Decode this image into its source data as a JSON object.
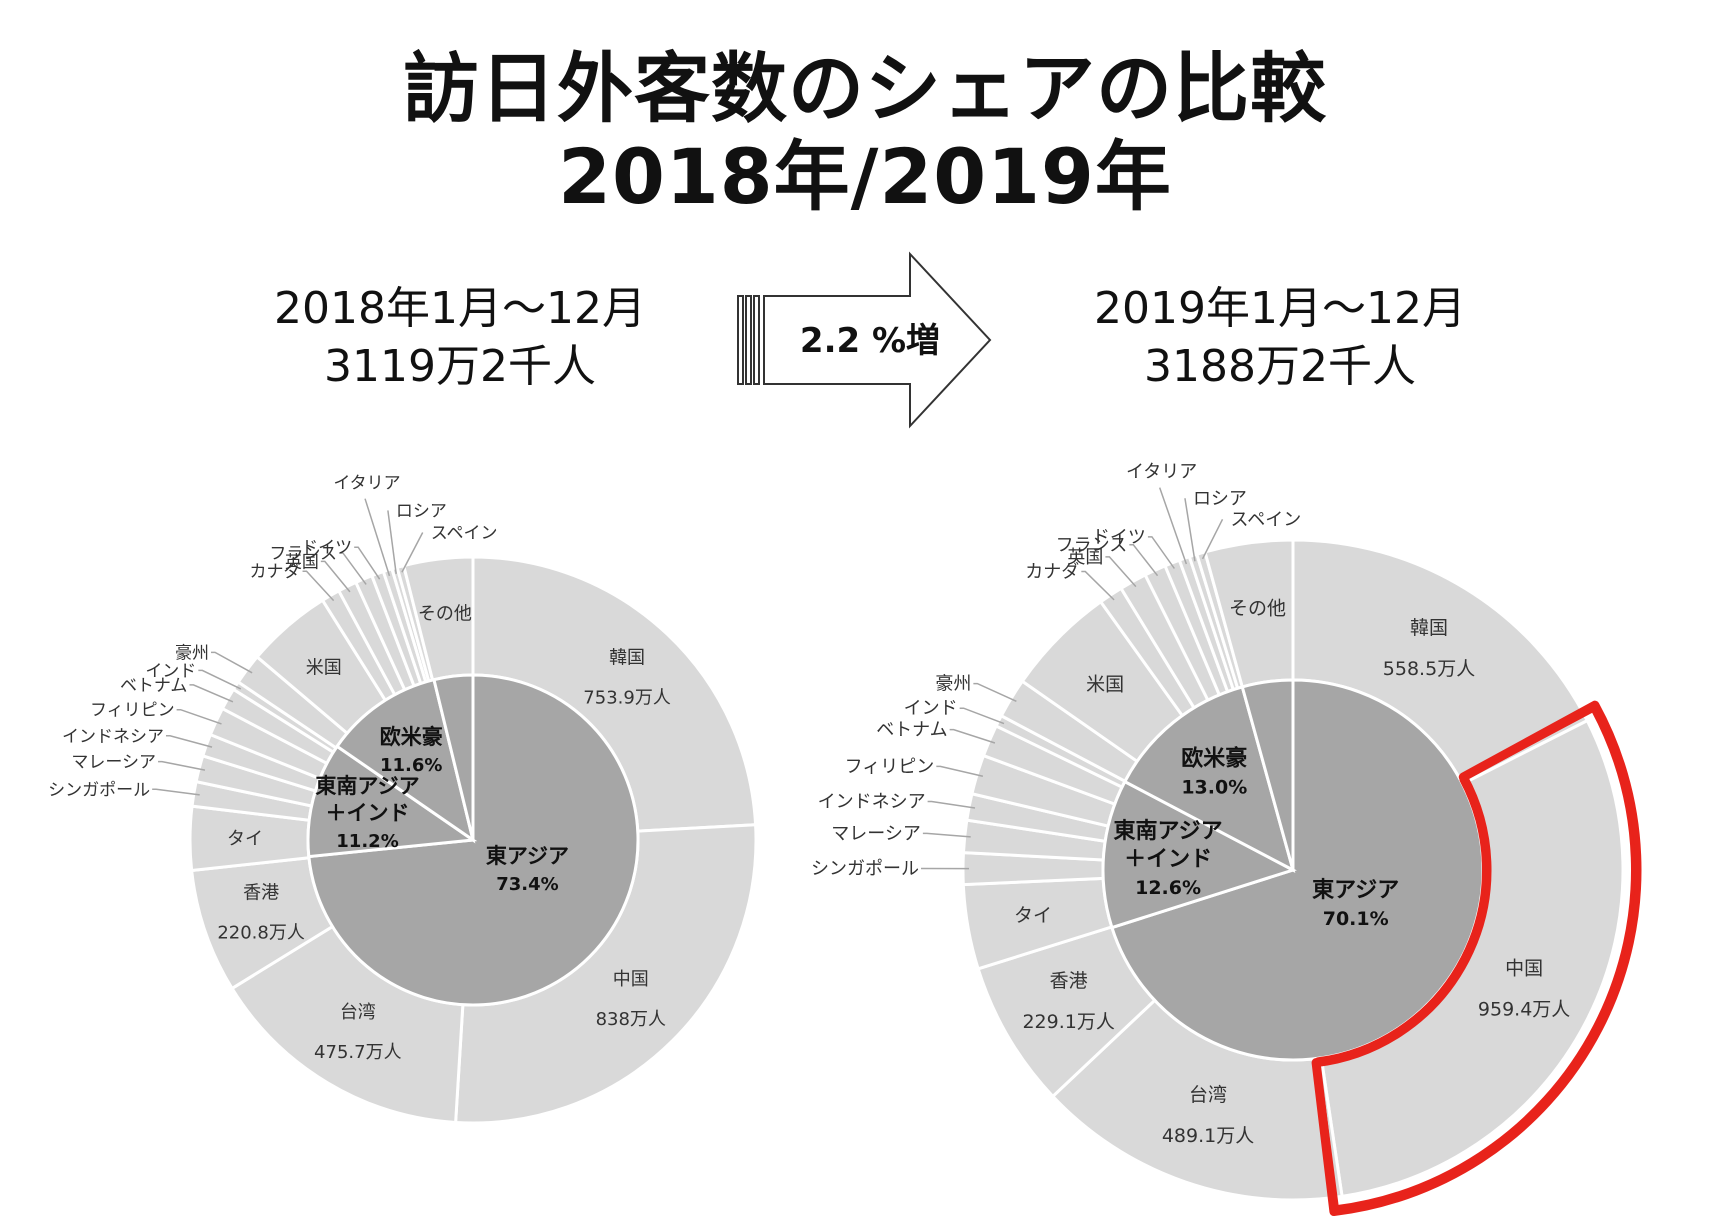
{
  "title": {
    "line1": "訪日外客数のシェアの比較",
    "line2": "2018年/2019年"
  },
  "arrow": {
    "label": "2.2 %増"
  },
  "chart_data": [
    {
      "type": "pie",
      "period": "2018年1月～12月",
      "total": "3119万2千人",
      "inner_groups": [
        {
          "name": "東アジア",
          "share_label": "73.4%",
          "value": 73.4
        },
        {
          "name": "東南アジア＋インド",
          "name_lines": [
            "東南アジア",
            "＋インド"
          ],
          "share_label": "11.2%",
          "value": 11.2
        },
        {
          "name": "欧米豪",
          "share_label": "11.6%",
          "value": 11.6
        },
        {
          "name": "",
          "share_label": "",
          "value": 3.8
        }
      ],
      "outer_segments": [
        {
          "name": "韓国",
          "value_label": "753.9万人",
          "value": 753.9
        },
        {
          "name": "中国",
          "value_label": "838万人",
          "value": 838
        },
        {
          "name": "台湾",
          "value_label": "475.7万人",
          "value": 475.7
        },
        {
          "name": "香港",
          "value_label": "220.8万人",
          "value": 220.8
        },
        {
          "name": "タイ",
          "value_label": "",
          "value": 113.2
        },
        {
          "name": "シンガポール",
          "value_label": "",
          "value": 43.7
        },
        {
          "name": "マレーシア",
          "value_label": "",
          "value": 46.8
        },
        {
          "name": "インドネシア",
          "value_label": "",
          "value": 39.6
        },
        {
          "name": "フィリピン",
          "value_label": "",
          "value": 50.4
        },
        {
          "name": "ベトナム",
          "value_label": "",
          "value": 38.9
        },
        {
          "name": "インド",
          "value_label": "",
          "value": 15.4
        },
        {
          "name": "豪州",
          "value_label": "",
          "value": 55.2
        },
        {
          "name": "米国",
          "value_label": "",
          "value": 152.6
        },
        {
          "name": "カナダ",
          "value_label": "",
          "value": 33
        },
        {
          "name": "英国",
          "value_label": "",
          "value": 33.4
        },
        {
          "name": "フランス",
          "value_label": "",
          "value": 30.5
        },
        {
          "name": "ドイツ",
          "value_label": "",
          "value": 21.5
        },
        {
          "name": "イタリア",
          "value_label": "",
          "value": 15.7
        },
        {
          "name": "ロシア",
          "value_label": "",
          "value": 9.5
        },
        {
          "name": "スペイン",
          "value_label": "",
          "value": 11.9
        },
        {
          "name": "その他",
          "value_label": "",
          "value": 123
        }
      ]
    },
    {
      "type": "pie",
      "period": "2019年1月～12月",
      "total": "3188万2千人",
      "inner_groups": [
        {
          "name": "東アジア",
          "share_label": "70.1%",
          "value": 70.1
        },
        {
          "name": "東南アジア＋インド",
          "name_lines": [
            "東南アジア",
            "＋インド"
          ],
          "share_label": "12.6%",
          "value": 12.6
        },
        {
          "name": "欧米豪",
          "share_label": "13.0%",
          "value": 13.0
        },
        {
          "name": "",
          "share_label": "",
          "value": 4.3
        }
      ],
      "outer_segments": [
        {
          "name": "韓国",
          "value_label": "558.5万人",
          "value": 558.5
        },
        {
          "name": "中国",
          "value_label": "959.4万人",
          "value": 959.4
        },
        {
          "name": "台湾",
          "value_label": "489.1万人",
          "value": 489.1
        },
        {
          "name": "香港",
          "value_label": "229.1万人",
          "value": 229.1
        },
        {
          "name": "タイ",
          "value_label": "",
          "value": 131.9
        },
        {
          "name": "シンガポール",
          "value_label": "",
          "value": 49.2
        },
        {
          "name": "マレーシア",
          "value_label": "",
          "value": 50.2
        },
        {
          "name": "インドネシア",
          "value_label": "",
          "value": 41.3
        },
        {
          "name": "フィリピン",
          "value_label": "",
          "value": 61.3
        },
        {
          "name": "ベトナム",
          "value_label": "",
          "value": 49.5
        },
        {
          "name": "インド",
          "value_label": "",
          "value": 17.6
        },
        {
          "name": "豪州",
          "value_label": "",
          "value": 62.2
        },
        {
          "name": "米国",
          "value_label": "",
          "value": 172.4
        },
        {
          "name": "カナダ",
          "value_label": "",
          "value": 37.5
        },
        {
          "name": "英国",
          "value_label": "",
          "value": 42.4
        },
        {
          "name": "フランス",
          "value_label": "",
          "value": 33.6
        },
        {
          "name": "ドイツ",
          "value_label": "",
          "value": 23.7
        },
        {
          "name": "イタリア",
          "value_label": "",
          "value": 16.3
        },
        {
          "name": "ロシア",
          "value_label": "",
          "value": 12
        },
        {
          "name": "スペイン",
          "value_label": "",
          "value": 13
        },
        {
          "name": "その他",
          "value_label": "",
          "value": 137
        }
      ],
      "highlight": {
        "segment": "中国",
        "color": "#e8231b"
      }
    }
  ],
  "colors": {
    "outer_fill": "#d9d9d9",
    "inner_fill": "#a6a6a6",
    "stroke": "#ffffff",
    "leader": "#a6a6a6",
    "highlight": "#e8231b"
  }
}
